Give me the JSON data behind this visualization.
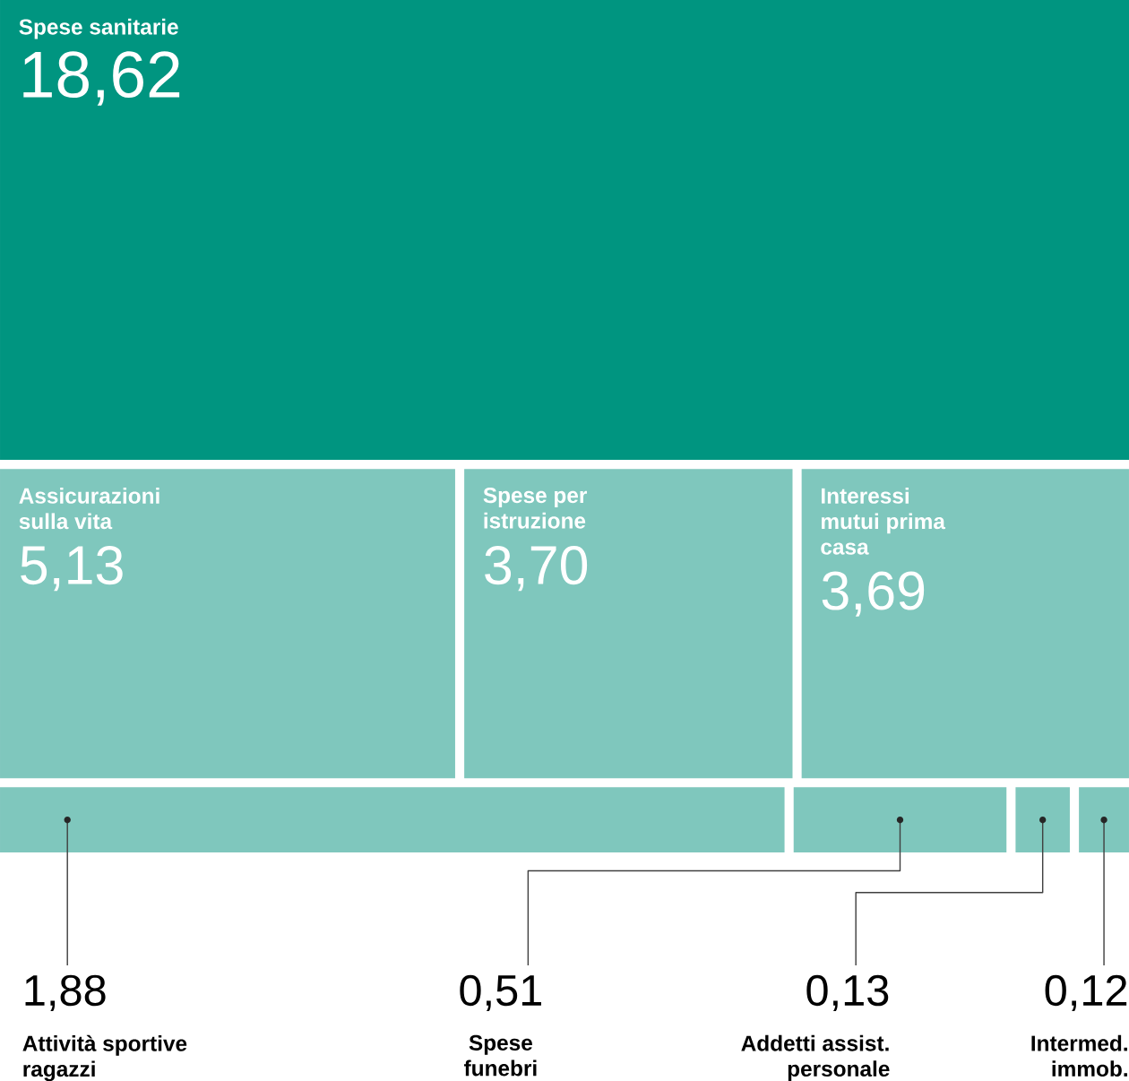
{
  "chart_data": {
    "type": "other",
    "categories": [
      "Spese sanitarie",
      "Assicurazioni sulla vita",
      "Spese per istruzione",
      "Interessi mutui prima casa",
      "Attività sportive ragazzi",
      "Spese funebri",
      "Addetti assist. personale",
      "Intermed. immob."
    ],
    "values": [
      18.62,
      5.13,
      3.7,
      3.69,
      1.88,
      0.51,
      0.13,
      0.12
    ],
    "value_labels": [
      "18,62",
      "5,13",
      "3,70",
      "3,69",
      "1,88",
      "0,51",
      "0,13",
      "0,12"
    ],
    "colors": [
      "#009580",
      "#7fc7bd",
      "#7fc7bd",
      "#7fc7bd",
      "#7fc7bd",
      "#7fc7bd",
      "#7fc7bd",
      "#7fc7bd"
    ]
  }
}
